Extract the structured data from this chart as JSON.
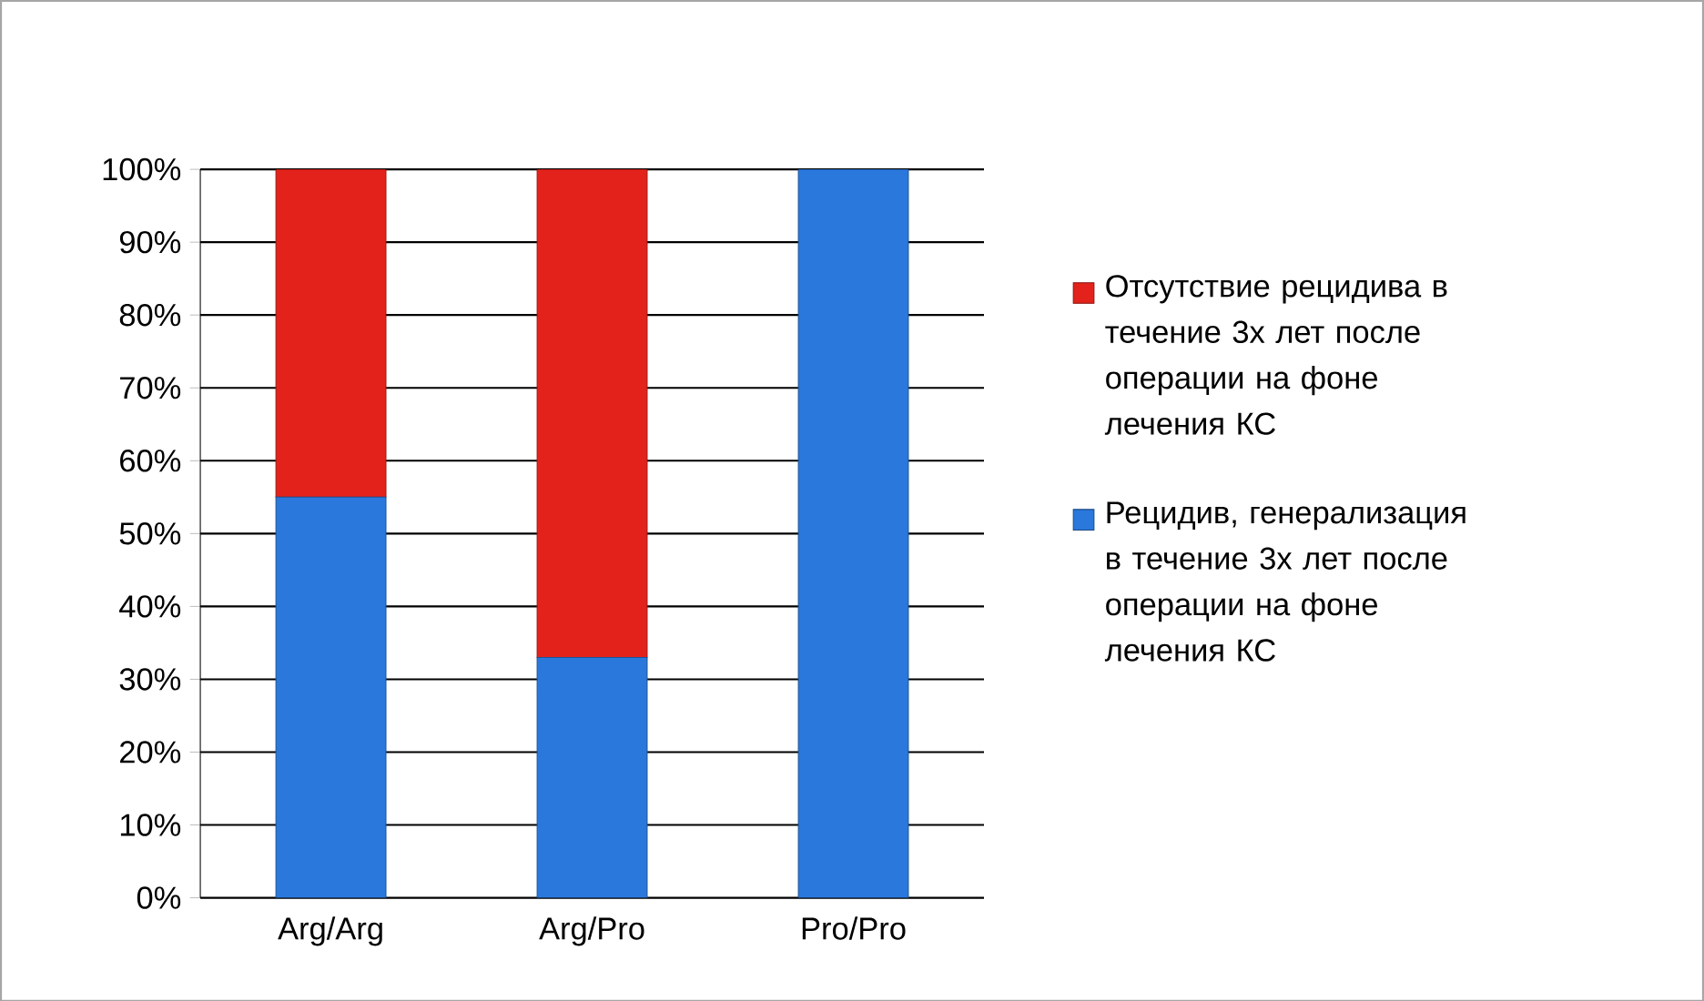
{
  "chart_data": {
    "type": "bar",
    "stacked": true,
    "categories": [
      "Arg/Arg",
      "Arg/Pro",
      "Pro/Pro"
    ],
    "series": [
      {
        "name": "Рецидив, генерализация в течение 3х лет после операции на фоне лечения КС",
        "color": "#2a78dc",
        "values": [
          55,
          33,
          100
        ]
      },
      {
        "name": "Отсутствие рецидива в течение 3х лет после операции на фоне лечения КС",
        "color": "#e3221c",
        "values": [
          45,
          67,
          0
        ]
      }
    ],
    "ylim": [
      0,
      100
    ],
    "yticks": [
      {
        "value": 0,
        "label": "0%"
      },
      {
        "value": 10,
        "label": "10%"
      },
      {
        "value": 20,
        "label": "20%"
      },
      {
        "value": 30,
        "label": "30%"
      },
      {
        "value": 40,
        "label": "40%"
      },
      {
        "value": 50,
        "label": "50%"
      },
      {
        "value": 60,
        "label": "60%"
      },
      {
        "value": 70,
        "label": "70%"
      },
      {
        "value": 80,
        "label": "80%"
      },
      {
        "value": 90,
        "label": "90%"
      },
      {
        "value": 100,
        "label": "100%"
      }
    ],
    "grid": "y",
    "legend": "right"
  }
}
